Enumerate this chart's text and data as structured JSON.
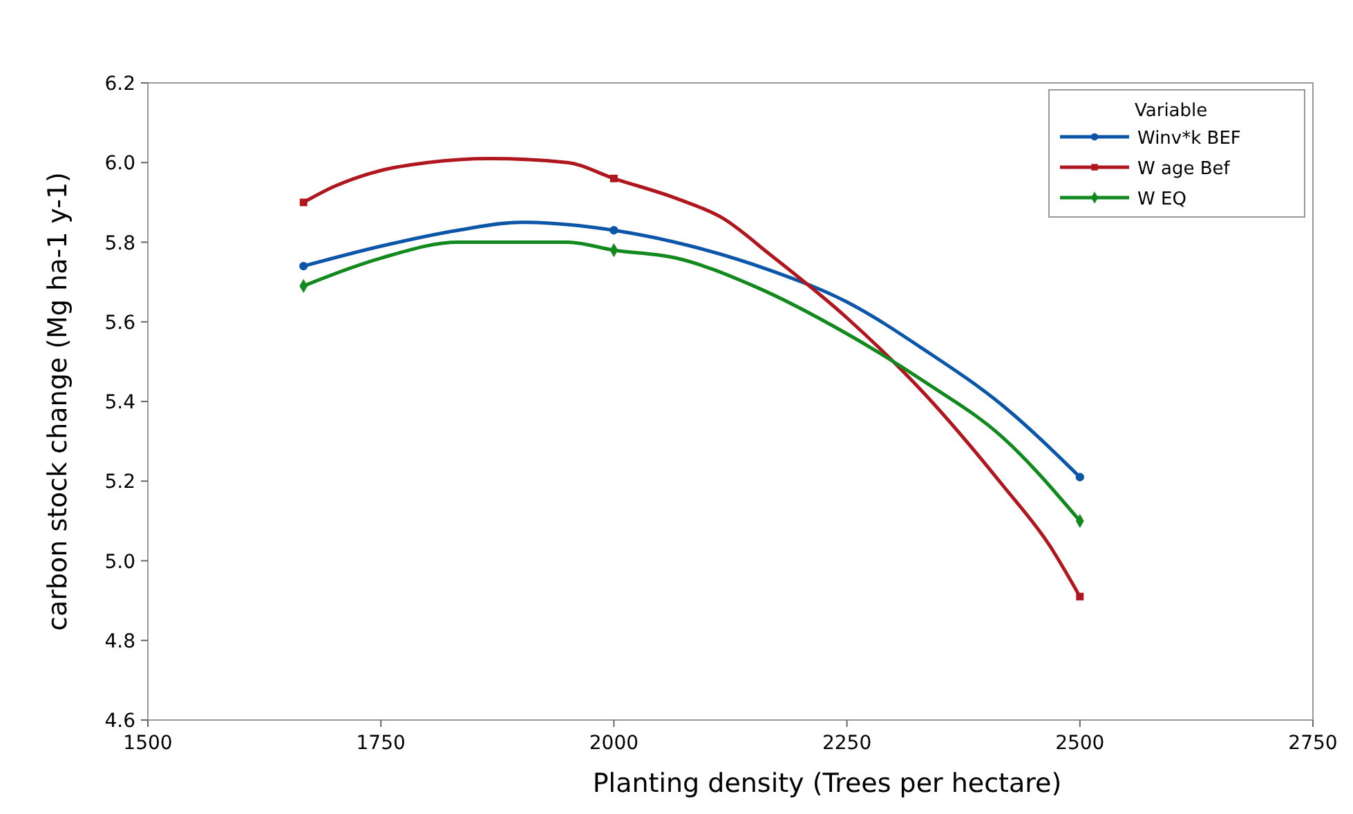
{
  "chart_data": {
    "type": "line",
    "xlabel": "Planting density (Trees per hectare)",
    "ylabel": "carbon stock change (Mg ha-1 y-1)",
    "legend_title": "Variable",
    "legend": "top right",
    "grid": false,
    "xlim": [
      1500,
      2750
    ],
    "xticks": [
      1500,
      1750,
      2000,
      2250,
      2500,
      2750
    ],
    "ylim": [
      4.6,
      6.2
    ],
    "yticks": [
      4.6,
      4.8,
      {
        "value": 5,
        "label": "5.0"
      },
      5.2,
      5.4,
      5.6,
      5.8,
      {
        "value": 6,
        "label": "6.0"
      },
      6.2
    ],
    "series": [
      {
        "name": "Winv*k BEF",
        "color": "#0b56a8",
        "x": [
          1667,
          1750,
          1833,
          1900,
          2000,
          2083,
          2167,
          2250,
          2333,
          2417,
          2500
        ],
        "values": [
          5.74,
          5.79,
          5.83,
          5.85,
          5.83,
          5.79,
          5.73,
          5.65,
          5.53,
          5.39,
          5.21
        ]
      },
      {
        "name": "W age Bef",
        "color": "#b0161d",
        "x": [
          1667,
          1700,
          1750,
          1800,
          1867,
          1950,
          2000,
          2067,
          2117,
          2167,
          2250,
          2333,
          2417,
          2467,
          2500
        ],
        "values": [
          5.9,
          5.94,
          5.98,
          6.0,
          6.01,
          6.0,
          5.96,
          5.91,
          5.86,
          5.77,
          5.61,
          5.42,
          5.19,
          5.04,
          4.91
        ]
      },
      {
        "name": "W EQ",
        "color": "#11891d",
        "x": [
          1667,
          1750,
          1833,
          1950,
          2000,
          2067,
          2150,
          2250,
          2333,
          2417,
          2500
        ],
        "values": [
          5.69,
          5.76,
          5.8,
          5.8,
          5.78,
          5.76,
          5.69,
          5.57,
          5.45,
          5.31,
          5.1
        ]
      },
      {
        "type": "scatter",
        "color": "#0b56a8",
        "marker": "circle",
        "x": [
          1667,
          2000,
          2500
        ],
        "values": [
          5.74,
          5.83,
          5.21
        ]
      },
      {
        "type": "scatter",
        "color": "#b0161d",
        "marker": "square",
        "x": [
          1667,
          2000,
          2500
        ],
        "values": [
          5.9,
          5.96,
          4.91
        ]
      },
      {
        "type": "scatter",
        "color": "#11891d",
        "marker": "diamond",
        "x": [
          1667,
          2000,
          2500
        ],
        "values": [
          5.69,
          5.78,
          5.1
        ]
      }
    ]
  }
}
